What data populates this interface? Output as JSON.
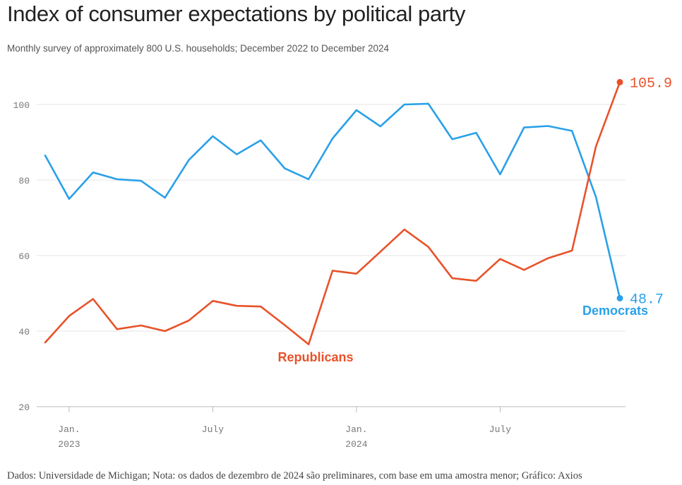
{
  "title": "Index of consumer expectations by political party",
  "subtitle": "Monthly survey of approximately 800 U.S. households; December 2022 to December 2024",
  "source": "Dados: Universidade de Michigan; Nota: os dados de dezembro de 2024 são preliminares, com base em uma amostra menor; Gráfico: Axios",
  "colors": {
    "democrats": "#2aa0e8",
    "republicans": "#e8522a",
    "grid": "#e6e6e6",
    "axis": "#bbbbbb"
  },
  "chart_data": {
    "type": "line",
    "x": [
      "2022-12",
      "2023-01",
      "2023-02",
      "2023-03",
      "2023-04",
      "2023-05",
      "2023-06",
      "2023-07",
      "2023-08",
      "2023-09",
      "2023-10",
      "2023-11",
      "2023-12",
      "2024-01",
      "2024-02",
      "2024-03",
      "2024-04",
      "2024-05",
      "2024-06",
      "2024-07",
      "2024-08",
      "2024-09",
      "2024-10",
      "2024-11",
      "2024-12"
    ],
    "series": [
      {
        "name": "Democrats",
        "color": "#2aa0e8",
        "values": [
          86.5,
          75.0,
          82.0,
          80.2,
          79.8,
          75.3,
          85.3,
          91.6,
          86.8,
          90.5,
          83.1,
          80.2,
          91.0,
          98.5,
          94.2,
          100.0,
          100.2,
          90.8,
          92.5,
          81.5,
          93.9,
          94.3,
          93.0,
          75.5,
          48.7
        ]
      },
      {
        "name": "Republicans",
        "color": "#e8522a",
        "values": [
          37.0,
          44.0,
          48.5,
          40.5,
          41.5,
          40.0,
          42.8,
          48.0,
          46.7,
          46.5,
          41.6,
          36.5,
          56.0,
          55.2,
          61.0,
          66.9,
          62.3,
          54.0,
          53.3,
          59.1,
          56.2,
          59.3,
          61.3,
          88.9,
          105.9
        ]
      }
    ],
    "y_ticks": [
      "100",
      "80",
      "60",
      "40",
      "20"
    ],
    "ylim": [
      20,
      108
    ],
    "x_ticks": [
      {
        "x": "2023-01",
        "label": "Jan.",
        "label2": "2023"
      },
      {
        "x": "2023-07",
        "label": "July",
        "label2": ""
      },
      {
        "x": "2024-01",
        "label": "Jan.",
        "label2": "2024"
      },
      {
        "x": "2024-07",
        "label": "July",
        "label2": ""
      }
    ],
    "end_values": {
      "republicans": "105.9",
      "democrats": "48.7"
    },
    "series_labels": {
      "republicans": "Republicans",
      "democrats": "Democrats"
    },
    "grid": true
  }
}
